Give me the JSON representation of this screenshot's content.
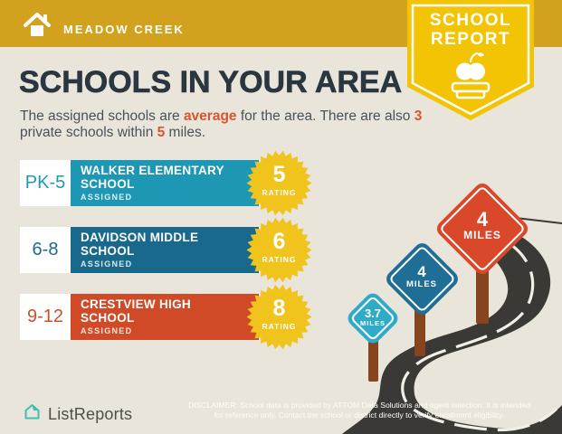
{
  "header": {
    "location": "MEADOW CREEK",
    "badge": {
      "line1": "SCHOOL",
      "line2": "REPORT"
    }
  },
  "main": {
    "title": "SCHOOLS IN YOUR AREA",
    "intro": {
      "l1_a": "The assigned schools are ",
      "l1_b": "average",
      "l1_c": " for the area. There are also ",
      "l1_d": "3",
      "l2_a": "private schools within ",
      "l2_b": "5",
      "l2_c": " miles."
    }
  },
  "schools": [
    {
      "grades": "PK-5",
      "name": "WALKER ELEMENTARY SCHOOL",
      "status": "ASSIGNED",
      "rating": "5",
      "rating_label": "RATING",
      "color": "#1E97B5",
      "grade_color": "#2098B6"
    },
    {
      "grades": "6-8",
      "name": "DAVIDSON MIDDLE SCHOOL",
      "status": "ASSIGNED",
      "rating": "6",
      "rating_label": "RATING",
      "color": "#19698C",
      "grade_color": "#1A6A8D"
    },
    {
      "grades": "9-12",
      "name": "CRESTVIEW HIGH SCHOOL",
      "status": "ASSIGNED",
      "rating": "8",
      "rating_label": "RATING",
      "color": "#D14A28",
      "grade_color": "#C8502E"
    }
  ],
  "signs": [
    {
      "distance": "3.7",
      "unit": "MILES",
      "color": "#2FABC8"
    },
    {
      "distance": "4",
      "unit": "MILES",
      "color": "#1E6E96"
    },
    {
      "distance": "4",
      "unit": "MILES",
      "color": "#D9482B"
    }
  ],
  "footer": {
    "brand": "ListReports",
    "disclaimer_line1": "DISCLAIMER: School data is provided by ATTOM Data Solutions and agent selection. It is intended",
    "disclaimer_line2": "for reference only. Contact the school or district directly to verify enrollment eligibility."
  },
  "icons": {
    "home": "home-icon (white house with chimney)",
    "school_report": "apple-on-books-icon",
    "brand": "listreports-house-icon"
  },
  "colors": {
    "background": "#EAE5DA",
    "header_gold": "#D2A11E",
    "badge_yellow": "#F2C403",
    "burst_yellow": "#F0C41C",
    "accent_orange": "#D7552E",
    "title_navy": "#2A3640",
    "road_dark": "#3B3936",
    "road_line": "#F2EFE6",
    "post_brown": "#86451F",
    "brand_teal": "#3FC0B2"
  }
}
